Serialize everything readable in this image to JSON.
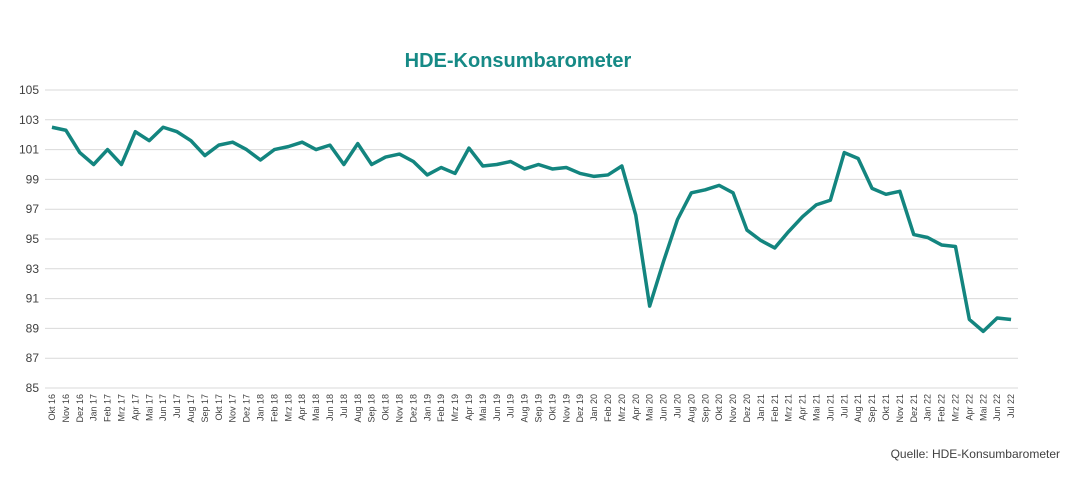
{
  "chart_data": {
    "type": "line",
    "title": "HDE-Konsumbarometer",
    "source": "Quelle: HDE-Konsumbarometer",
    "categories": [
      "Okt 16",
      "Nov 16",
      "Dez 16",
      "Jan 17",
      "Feb 17",
      "Mrz 17",
      "Apr 17",
      "Mai 17",
      "Jun 17",
      "Jul 17",
      "Aug 17",
      "Sep 17",
      "Okt 17",
      "Nov 17",
      "Dez 17",
      "Jan 18",
      "Feb 18",
      "Mrz 18",
      "Apr 18",
      "Mai 18",
      "Jun 18",
      "Jul 18",
      "Aug 18",
      "Sep 18",
      "Okt 18",
      "Nov 18",
      "Dez 18",
      "Jan 19",
      "Feb 19",
      "Mrz 19",
      "Apr 19",
      "Mai 19",
      "Jun 19",
      "Jul 19",
      "Aug 19",
      "Sep 19",
      "Okt 19",
      "Nov 19",
      "Dez 19",
      "Jan 20",
      "Feb 20",
      "Mrz 20",
      "Apr 20",
      "Mai 20",
      "Jun 20",
      "Jul 20",
      "Aug 20",
      "Sep 20",
      "Okt 20",
      "Nov 20",
      "Dez 20",
      "Jan 21",
      "Feb 21",
      "Mrz 21",
      "Apr 21",
      "Mai 21",
      "Jun 21",
      "Jul 21",
      "Aug 21",
      "Sep 21",
      "Okt 21",
      "Nov 21",
      "Dez 21",
      "Jan 22",
      "Feb 22",
      "Mrz 22",
      "Apr 22",
      "Mai 22",
      "Jun 22",
      "Jul 22"
    ],
    "values": [
      102.5,
      102.3,
      100.8,
      100.0,
      101.0,
      100.0,
      102.2,
      101.6,
      102.5,
      102.2,
      101.6,
      100.6,
      101.3,
      101.5,
      101.0,
      100.3,
      101.0,
      101.2,
      101.5,
      101.0,
      101.3,
      100.0,
      101.4,
      100.0,
      100.5,
      100.7,
      100.2,
      99.3,
      99.8,
      99.4,
      101.1,
      99.9,
      100.0,
      100.2,
      99.7,
      100.0,
      99.7,
      99.8,
      99.4,
      99.2,
      99.3,
      99.9,
      96.6,
      90.5,
      93.5,
      96.3,
      98.1,
      98.3,
      98.6,
      98.1,
      95.6,
      94.9,
      94.4,
      95.5,
      96.5,
      97.3,
      97.6,
      100.8,
      100.4,
      98.4,
      98.0,
      98.2,
      95.3,
      95.1,
      94.6,
      94.5,
      89.6,
      88.8,
      89.7,
      89.6
    ],
    "color": "#13857f",
    "ylim": [
      85,
      105
    ],
    "yticks": [
      85,
      87,
      89,
      91,
      93,
      95,
      97,
      99,
      101,
      103,
      105
    ],
    "grid": true
  }
}
